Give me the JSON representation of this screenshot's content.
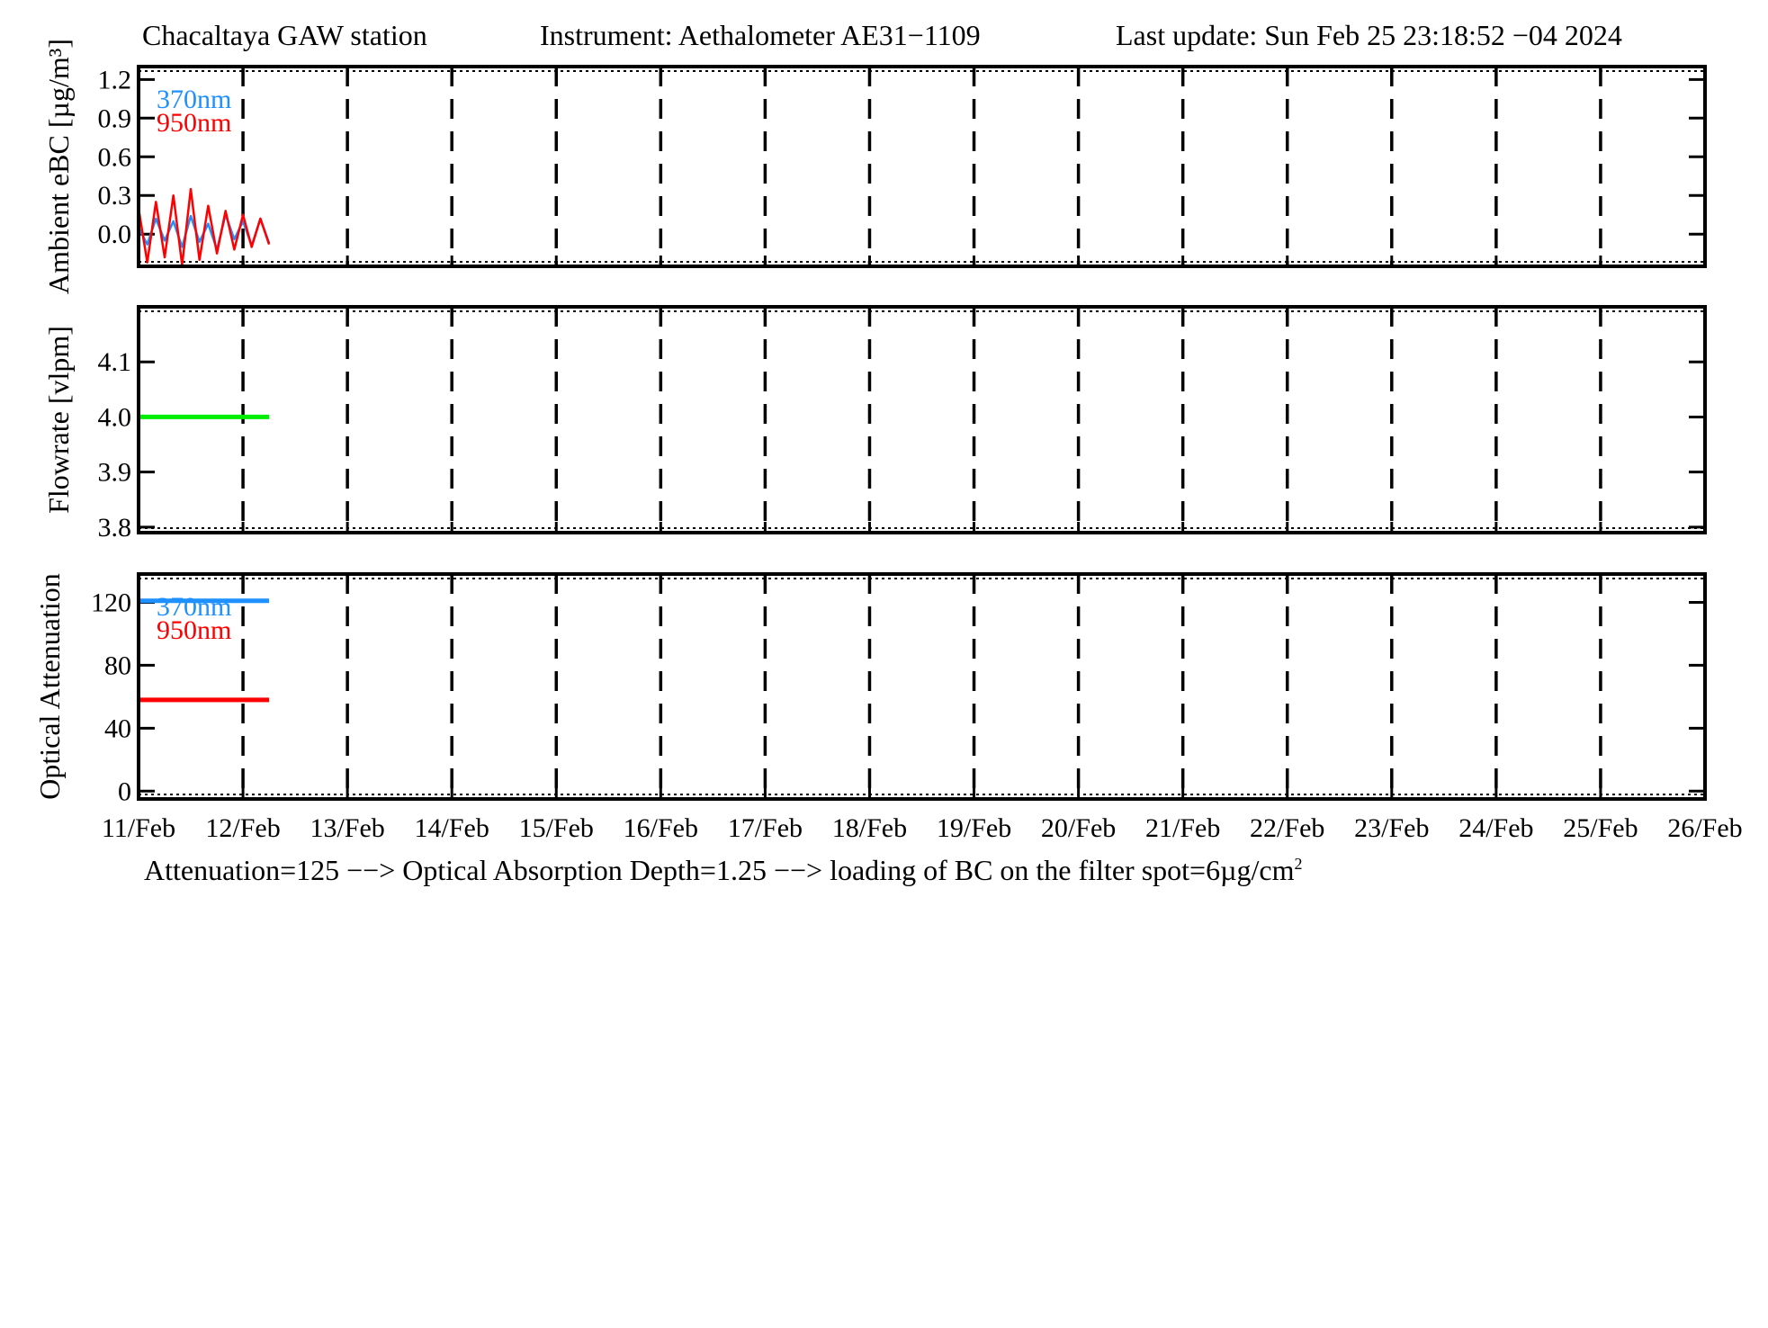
{
  "header": {
    "station": "Chacaltaya GAW station",
    "instrument": "Instrument: Aethalometer AE31−1109",
    "last_update": "Last update: Sun Feb 25 23:18:52 −04 2024"
  },
  "footer_note": {
    "main": "Attenuation=125 −−> Optical Absorption Depth=1.25 −−> loading of BC on the filter spot=6µg/cm",
    "sup": "2"
  },
  "colors": {
    "nm370": "#1e90ff",
    "nm950": "#ff0000",
    "flow": "#00ee00",
    "axis": "#000000"
  },
  "chart_data": [
    {
      "type": "line",
      "ylabel": "Ambient eBC [µg/m³]",
      "ylim": [
        -0.25,
        1.3
      ],
      "yticks": [
        1.2,
        0.9,
        0.6,
        0.3,
        0.0
      ],
      "yticklabels": [
        "1.2",
        "0.9",
        "0.6",
        "0.3",
        "0.0"
      ],
      "xlim": [
        "2024-02-11",
        "2024-02-26"
      ],
      "grid": "vertical dashed at each day",
      "legend_position": "top-left",
      "series": [
        {
          "name": "370nm",
          "color": "#1e90ff",
          "x": [
            "2024-02-11 00:00",
            "2024-02-11 02:00",
            "2024-02-11 04:00",
            "2024-02-11 06:00",
            "2024-02-11 08:00",
            "2024-02-11 10:00",
            "2024-02-11 12:00",
            "2024-02-11 14:00",
            "2024-02-11 16:00",
            "2024-02-11 18:00",
            "2024-02-11 20:00",
            "2024-02-11 22:00",
            "2024-02-12 00:00",
            "2024-02-12 02:00",
            "2024-02-12 04:00",
            "2024-02-12 06:00"
          ],
          "values": [
            0.05,
            -0.08,
            0.12,
            -0.05,
            0.1,
            -0.1,
            0.14,
            -0.06,
            0.08,
            -0.12,
            0.15,
            -0.04,
            0.1,
            -0.09,
            0.12,
            -0.07
          ]
        },
        {
          "name": "950nm",
          "color": "#ff0000",
          "x": [
            "2024-02-11 00:00",
            "2024-02-11 02:00",
            "2024-02-11 04:00",
            "2024-02-11 06:00",
            "2024-02-11 08:00",
            "2024-02-11 10:00",
            "2024-02-11 12:00",
            "2024-02-11 14:00",
            "2024-02-11 16:00",
            "2024-02-11 18:00",
            "2024-02-11 20:00",
            "2024-02-11 22:00",
            "2024-02-12 00:00",
            "2024-02-12 02:00",
            "2024-02-12 04:00",
            "2024-02-12 06:00"
          ],
          "values": [
            0.2,
            -0.22,
            0.25,
            -0.18,
            0.3,
            -0.24,
            0.35,
            -0.2,
            0.22,
            -0.15,
            0.18,
            -0.12,
            0.15,
            -0.1,
            0.12,
            -0.08
          ]
        }
      ]
    },
    {
      "type": "line",
      "ylabel": "Flowrate  [vlpm]",
      "ylim": [
        3.79,
        4.2
      ],
      "yticks": [
        4.1,
        4.0,
        3.9,
        3.8
      ],
      "yticklabels": [
        "4.1",
        "4.0",
        "3.9",
        "3.8"
      ],
      "xlim": [
        "2024-02-11",
        "2024-02-26"
      ],
      "grid": "vertical dashed at each day",
      "series": [
        {
          "color": "#00ee00",
          "x": [
            "2024-02-11 00:00",
            "2024-02-12 06:00"
          ],
          "values": [
            4.0,
            4.0
          ]
        }
      ]
    },
    {
      "type": "line",
      "ylabel": "Optical Attenuation",
      "ylim": [
        -5,
        138
      ],
      "yticks": [
        120,
        80,
        40,
        0
      ],
      "yticklabels": [
        "120",
        "80",
        "40",
        "0"
      ],
      "xlim": [
        "2024-02-11",
        "2024-02-26"
      ],
      "xticklabels": [
        "11/Feb",
        "12/Feb",
        "13/Feb",
        "14/Feb",
        "15/Feb",
        "16/Feb",
        "17/Feb",
        "18/Feb",
        "19/Feb",
        "20/Feb",
        "21/Feb",
        "22/Feb",
        "23/Feb",
        "24/Feb",
        "25/Feb",
        "26/Feb"
      ],
      "grid": "vertical dashed at each day",
      "legend_position": "top-left",
      "series": [
        {
          "name": "370nm",
          "color": "#1e90ff",
          "x": [
            "2024-02-11 00:00",
            "2024-02-12 06:00"
          ],
          "values": [
            121,
            121
          ]
        },
        {
          "name": "950nm",
          "color": "#ff0000",
          "x": [
            "2024-02-11 00:00",
            "2024-02-12 06:00"
          ],
          "values": [
            58,
            58
          ]
        }
      ]
    }
  ]
}
